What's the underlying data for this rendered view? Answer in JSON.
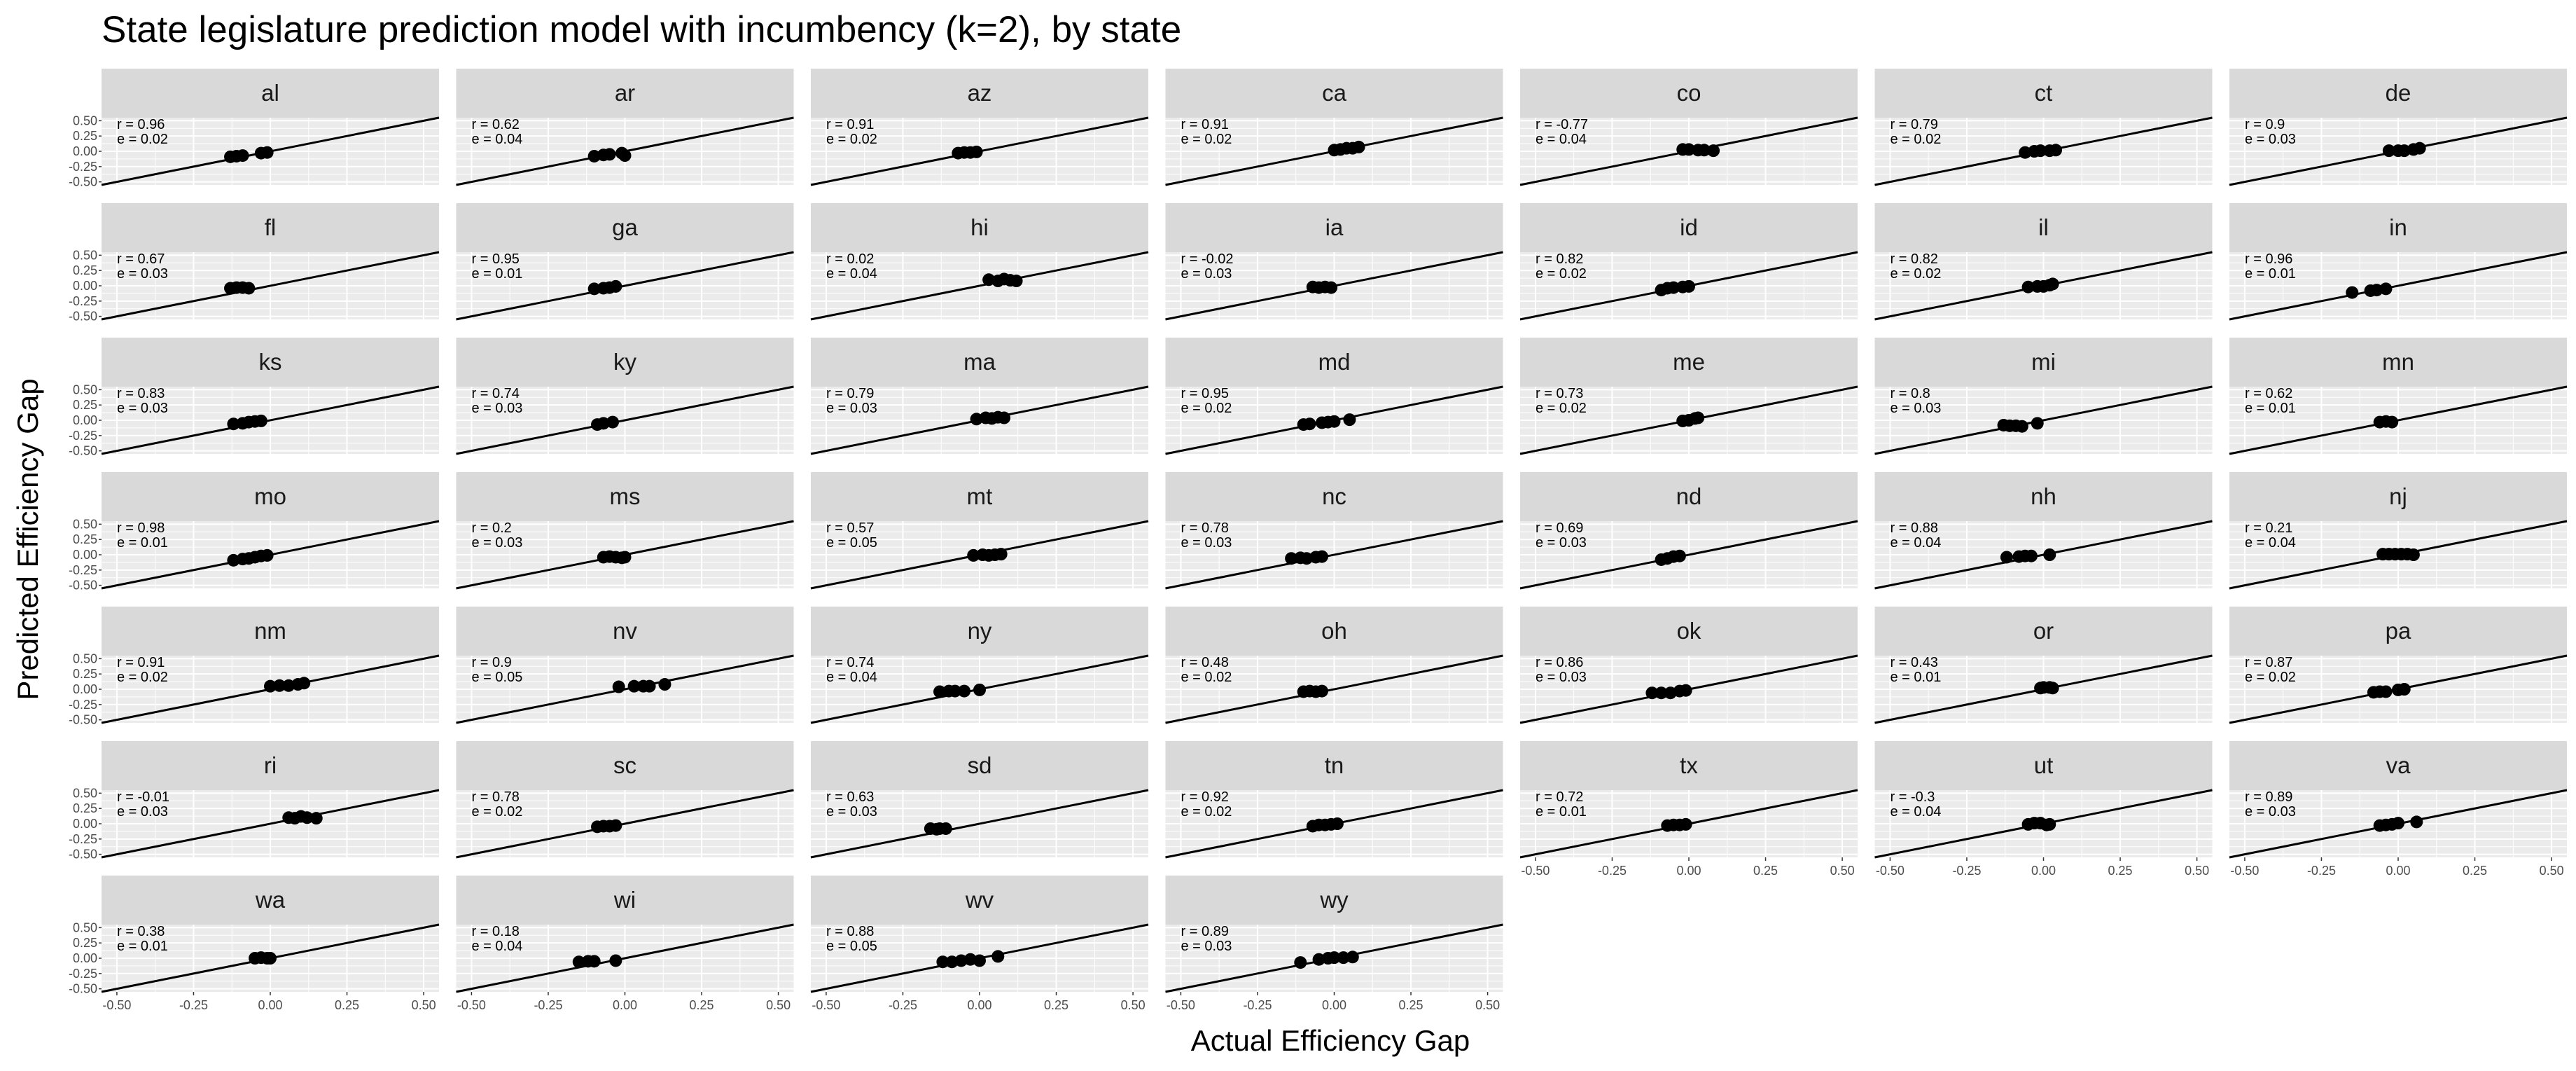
{
  "chart_data": {
    "type": "scatter",
    "title": "State legislature prediction model with incumbency (k=2), by state",
    "xlabel": "Actual Efficiency Gap",
    "ylabel": "Predicted Efficiency Gap",
    "xlim": [
      -0.55,
      0.55
    ],
    "ylim": [
      -0.55,
      0.55
    ],
    "x_ticks": [
      "-0.50",
      "-0.25",
      "0.00",
      "0.25",
      "0.50"
    ],
    "y_ticks": [
      "0.50",
      "0.25",
      "0.00",
      "-0.25",
      "-0.50"
    ],
    "reference_line": {
      "slope": 1,
      "intercept": 0
    },
    "grid": true,
    "ncol": 7,
    "colors": {
      "panel_bg": "#ebebeb",
      "strip_bg": "#d9d9d9",
      "grid": "#ffffff",
      "points": "#000000",
      "line": "#000000"
    },
    "panels": [
      {
        "state": "al",
        "r": "r = 0.96",
        "e": "e = 0.02",
        "points": [
          [
            -0.13,
            -0.09
          ],
          [
            -0.11,
            -0.08
          ],
          [
            -0.09,
            -0.07
          ],
          [
            -0.03,
            -0.03
          ],
          [
            -0.01,
            -0.02
          ]
        ]
      },
      {
        "state": "ar",
        "r": "r = 0.62",
        "e": "e = 0.04",
        "points": [
          [
            -0.1,
            -0.08
          ],
          [
            -0.07,
            -0.06
          ],
          [
            -0.05,
            -0.05
          ],
          [
            -0.01,
            -0.03
          ],
          [
            0.0,
            -0.07
          ]
        ]
      },
      {
        "state": "az",
        "r": "r = 0.91",
        "e": "e = 0.02",
        "points": [
          [
            -0.07,
            -0.03
          ],
          [
            -0.05,
            -0.02
          ],
          [
            -0.03,
            -0.02
          ],
          [
            -0.01,
            -0.01
          ]
        ]
      },
      {
        "state": "ca",
        "r": "r = 0.91",
        "e": "e = 0.02",
        "points": [
          [
            0.0,
            0.02
          ],
          [
            0.02,
            0.03
          ],
          [
            0.04,
            0.05
          ],
          [
            0.06,
            0.05
          ],
          [
            0.08,
            0.07
          ]
        ]
      },
      {
        "state": "co",
        "r": "r = -0.77",
        "e": "e = 0.04",
        "points": [
          [
            -0.02,
            0.03
          ],
          [
            0.0,
            0.03
          ],
          [
            0.03,
            0.02
          ],
          [
            0.05,
            0.02
          ],
          [
            0.08,
            0.01
          ]
        ]
      },
      {
        "state": "ct",
        "r": "r = 0.79",
        "e": "e = 0.02",
        "points": [
          [
            -0.06,
            -0.02
          ],
          [
            -0.03,
            0.0
          ],
          [
            -0.01,
            0.01
          ],
          [
            0.02,
            0.01
          ],
          [
            0.04,
            0.02
          ]
        ]
      },
      {
        "state": "de",
        "r": "r = 0.9",
        "e": "e = 0.03",
        "points": [
          [
            -0.03,
            0.01
          ],
          [
            0.0,
            0.01
          ],
          [
            0.02,
            0.01
          ],
          [
            0.05,
            0.03
          ],
          [
            0.07,
            0.05
          ]
        ]
      },
      {
        "state": "fl",
        "r": "r = 0.67",
        "e": "e = 0.03",
        "points": [
          [
            -0.13,
            -0.04
          ],
          [
            -0.11,
            -0.03
          ],
          [
            -0.09,
            -0.03
          ],
          [
            -0.07,
            -0.04
          ]
        ]
      },
      {
        "state": "ga",
        "r": "r = 0.95",
        "e": "e = 0.01",
        "points": [
          [
            -0.1,
            -0.05
          ],
          [
            -0.07,
            -0.04
          ],
          [
            -0.05,
            -0.03
          ],
          [
            -0.03,
            -0.01
          ]
        ]
      },
      {
        "state": "hi",
        "r": "r = 0.02",
        "e": "e = 0.04",
        "points": [
          [
            0.03,
            0.1
          ],
          [
            0.06,
            0.08
          ],
          [
            0.08,
            0.11
          ],
          [
            0.1,
            0.09
          ],
          [
            0.12,
            0.08
          ]
        ]
      },
      {
        "state": "ia",
        "r": "r = -0.02",
        "e": "e = 0.03",
        "points": [
          [
            -0.07,
            -0.02
          ],
          [
            -0.05,
            -0.03
          ],
          [
            -0.03,
            -0.02
          ],
          [
            -0.01,
            -0.03
          ]
        ]
      },
      {
        "state": "id",
        "r": "r = 0.82",
        "e": "e = 0.02",
        "points": [
          [
            -0.09,
            -0.07
          ],
          [
            -0.07,
            -0.04
          ],
          [
            -0.05,
            -0.03
          ],
          [
            -0.02,
            -0.02
          ],
          [
            0.0,
            -0.01
          ]
        ]
      },
      {
        "state": "il",
        "r": "r = 0.82",
        "e": "e = 0.02",
        "points": [
          [
            -0.05,
            -0.02
          ],
          [
            -0.02,
            -0.01
          ],
          [
            0.0,
            -0.01
          ],
          [
            0.02,
            0.01
          ],
          [
            0.03,
            0.03
          ]
        ]
      },
      {
        "state": "in",
        "r": "r = 0.96",
        "e": "e = 0.01",
        "points": [
          [
            -0.15,
            -0.11
          ],
          [
            -0.09,
            -0.08
          ],
          [
            -0.07,
            -0.07
          ],
          [
            -0.04,
            -0.05
          ]
        ]
      },
      {
        "state": "ks",
        "r": "r = 0.83",
        "e": "e = 0.03",
        "points": [
          [
            -0.12,
            -0.06
          ],
          [
            -0.09,
            -0.05
          ],
          [
            -0.07,
            -0.03
          ],
          [
            -0.05,
            -0.02
          ],
          [
            -0.03,
            -0.01
          ]
        ]
      },
      {
        "state": "ky",
        "r": "r = 0.74",
        "e": "e = 0.03",
        "points": [
          [
            -0.09,
            -0.07
          ],
          [
            -0.07,
            -0.05
          ],
          [
            -0.04,
            -0.03
          ]
        ]
      },
      {
        "state": "ma",
        "r": "r = 0.79",
        "e": "e = 0.03",
        "points": [
          [
            -0.01,
            0.02
          ],
          [
            0.02,
            0.04
          ],
          [
            0.04,
            0.03
          ],
          [
            0.06,
            0.05
          ],
          [
            0.08,
            0.04
          ]
        ]
      },
      {
        "state": "md",
        "r": "r = 0.95",
        "e": "e = 0.02",
        "points": [
          [
            -0.1,
            -0.07
          ],
          [
            -0.08,
            -0.06
          ],
          [
            -0.04,
            -0.04
          ],
          [
            -0.02,
            -0.03
          ],
          [
            0.0,
            -0.02
          ],
          [
            0.05,
            0.01
          ]
        ]
      },
      {
        "state": "me",
        "r": "r = 0.73",
        "e": "e = 0.02",
        "points": [
          [
            -0.02,
            -0.01
          ],
          [
            0.0,
            0.0
          ],
          [
            0.02,
            0.03
          ],
          [
            0.03,
            0.04
          ]
        ]
      },
      {
        "state": "mi",
        "r": "r = 0.8",
        "e": "e = 0.03",
        "points": [
          [
            -0.13,
            -0.08
          ],
          [
            -0.11,
            -0.09
          ],
          [
            -0.09,
            -0.09
          ],
          [
            -0.07,
            -0.1
          ],
          [
            -0.02,
            -0.05
          ]
        ]
      },
      {
        "state": "mn",
        "r": "r = 0.62",
        "e": "e = 0.01",
        "points": [
          [
            -0.06,
            -0.03
          ],
          [
            -0.04,
            -0.02
          ],
          [
            -0.02,
            -0.03
          ]
        ]
      },
      {
        "state": "mo",
        "r": "r = 0.98",
        "e": "e = 0.01",
        "points": [
          [
            -0.12,
            -0.09
          ],
          [
            -0.09,
            -0.07
          ],
          [
            -0.07,
            -0.06
          ],
          [
            -0.05,
            -0.04
          ],
          [
            -0.03,
            -0.02
          ],
          [
            -0.01,
            -0.01
          ]
        ]
      },
      {
        "state": "ms",
        "r": "r = 0.2",
        "e": "e = 0.03",
        "points": [
          [
            -0.07,
            -0.04
          ],
          [
            -0.05,
            -0.03
          ],
          [
            -0.03,
            -0.04
          ],
          [
            -0.01,
            -0.05
          ],
          [
            0.0,
            -0.04
          ]
        ]
      },
      {
        "state": "mt",
        "r": "r = 0.57",
        "e": "e = 0.05",
        "points": [
          [
            -0.02,
            -0.01
          ],
          [
            0.01,
            0.0
          ],
          [
            0.03,
            -0.01
          ],
          [
            0.05,
            0.0
          ],
          [
            0.07,
            0.01
          ]
        ]
      },
      {
        "state": "nc",
        "r": "r = 0.78",
        "e": "e = 0.03",
        "points": [
          [
            -0.14,
            -0.06
          ],
          [
            -0.11,
            -0.05
          ],
          [
            -0.09,
            -0.06
          ],
          [
            -0.06,
            -0.04
          ],
          [
            -0.04,
            -0.03
          ]
        ]
      },
      {
        "state": "nd",
        "r": "r = 0.69",
        "e": "e = 0.03",
        "points": [
          [
            -0.09,
            -0.08
          ],
          [
            -0.07,
            -0.06
          ],
          [
            -0.05,
            -0.03
          ],
          [
            -0.03,
            -0.02
          ]
        ]
      },
      {
        "state": "nh",
        "r": "r = 0.88",
        "e": "e = 0.04",
        "points": [
          [
            -0.12,
            -0.04
          ],
          [
            -0.08,
            -0.03
          ],
          [
            -0.06,
            -0.02
          ],
          [
            -0.04,
            -0.02
          ],
          [
            0.02,
            0.0
          ]
        ]
      },
      {
        "state": "nj",
        "r": "r = 0.21",
        "e": "e = 0.04",
        "points": [
          [
            -0.05,
            0.01
          ],
          [
            -0.03,
            0.01
          ],
          [
            -0.01,
            0.01
          ],
          [
            0.01,
            0.01
          ],
          [
            0.03,
            0.01
          ],
          [
            0.05,
            0.0
          ]
        ]
      },
      {
        "state": "nm",
        "r": "r = 0.91",
        "e": "e = 0.02",
        "points": [
          [
            0.0,
            0.05
          ],
          [
            0.03,
            0.06
          ],
          [
            0.06,
            0.06
          ],
          [
            0.09,
            0.08
          ],
          [
            0.11,
            0.1
          ]
        ]
      },
      {
        "state": "nv",
        "r": "r = 0.9",
        "e": "e = 0.05",
        "points": [
          [
            -0.02,
            0.04
          ],
          [
            0.03,
            0.05
          ],
          [
            0.06,
            0.05
          ],
          [
            0.08,
            0.05
          ],
          [
            0.13,
            0.08
          ]
        ]
      },
      {
        "state": "ny",
        "r": "r = 0.74",
        "e": "e = 0.04",
        "points": [
          [
            -0.13,
            -0.04
          ],
          [
            -0.1,
            -0.03
          ],
          [
            -0.08,
            -0.03
          ],
          [
            -0.05,
            -0.03
          ],
          [
            0.0,
            -0.01
          ]
        ]
      },
      {
        "state": "oh",
        "r": "r = 0.48",
        "e": "e = 0.02",
        "points": [
          [
            -0.1,
            -0.04
          ],
          [
            -0.08,
            -0.03
          ],
          [
            -0.06,
            -0.04
          ],
          [
            -0.04,
            -0.03
          ]
        ]
      },
      {
        "state": "ok",
        "r": "r = 0.86",
        "e": "e = 0.03",
        "points": [
          [
            -0.12,
            -0.06
          ],
          [
            -0.09,
            -0.06
          ],
          [
            -0.06,
            -0.06
          ],
          [
            -0.03,
            -0.03
          ],
          [
            -0.01,
            -0.02
          ]
        ]
      },
      {
        "state": "or",
        "r": "r = 0.43",
        "e": "e = 0.01",
        "points": [
          [
            -0.01,
            0.02
          ],
          [
            0.0,
            0.03
          ],
          [
            0.02,
            0.03
          ],
          [
            0.03,
            0.02
          ]
        ]
      },
      {
        "state": "pa",
        "r": "r = 0.87",
        "e": "e = 0.02",
        "points": [
          [
            -0.08,
            -0.05
          ],
          [
            -0.06,
            -0.04
          ],
          [
            -0.04,
            -0.04
          ],
          [
            0.0,
            -0.01
          ],
          [
            0.02,
            0.0
          ]
        ]
      },
      {
        "state": "ri",
        "r": "r = -0.01",
        "e": "e = 0.03",
        "points": [
          [
            0.06,
            0.1
          ],
          [
            0.08,
            0.09
          ],
          [
            0.1,
            0.12
          ],
          [
            0.12,
            0.1
          ],
          [
            0.15,
            0.09
          ]
        ]
      },
      {
        "state": "sc",
        "r": "r = 0.78",
        "e": "e = 0.02",
        "points": [
          [
            -0.09,
            -0.05
          ],
          [
            -0.07,
            -0.04
          ],
          [
            -0.05,
            -0.04
          ],
          [
            -0.03,
            -0.03
          ]
        ]
      },
      {
        "state": "sd",
        "r": "r = 0.63",
        "e": "e = 0.03",
        "points": [
          [
            -0.16,
            -0.08
          ],
          [
            -0.14,
            -0.09
          ],
          [
            -0.13,
            -0.08
          ],
          [
            -0.11,
            -0.08
          ]
        ]
      },
      {
        "state": "tn",
        "r": "r = 0.92",
        "e": "e = 0.02",
        "points": [
          [
            -0.07,
            -0.04
          ],
          [
            -0.05,
            -0.02
          ],
          [
            -0.03,
            -0.02
          ],
          [
            -0.01,
            -0.01
          ],
          [
            0.01,
            0.0
          ]
        ]
      },
      {
        "state": "tx",
        "r": "r = 0.72",
        "e": "e = 0.01",
        "points": [
          [
            -0.07,
            -0.03
          ],
          [
            -0.05,
            -0.02
          ],
          [
            -0.03,
            -0.02
          ],
          [
            -0.01,
            -0.01
          ]
        ]
      },
      {
        "state": "ut",
        "r": "r = -0.3",
        "e": "e = 0.04",
        "points": [
          [
            -0.05,
            -0.01
          ],
          [
            -0.03,
            0.01
          ],
          [
            -0.01,
            0.01
          ],
          [
            0.01,
            -0.02
          ],
          [
            0.02,
            -0.01
          ]
        ]
      },
      {
        "state": "va",
        "r": "r = 0.89",
        "e": "e = 0.03",
        "points": [
          [
            -0.06,
            -0.03
          ],
          [
            -0.04,
            -0.02
          ],
          [
            -0.02,
            -0.01
          ],
          [
            0.0,
            0.01
          ],
          [
            0.06,
            0.03
          ]
        ]
      },
      {
        "state": "wa",
        "r": "r = 0.38",
        "e": "e = 0.01",
        "points": [
          [
            -0.05,
            0.0
          ],
          [
            -0.03,
            0.01
          ],
          [
            -0.01,
            0.0
          ],
          [
            0.0,
            0.0
          ]
        ]
      },
      {
        "state": "wi",
        "r": "r = 0.18",
        "e": "e = 0.04",
        "points": [
          [
            -0.15,
            -0.06
          ],
          [
            -0.12,
            -0.05
          ],
          [
            -0.1,
            -0.05
          ],
          [
            -0.03,
            -0.04
          ]
        ]
      },
      {
        "state": "wv",
        "r": "r = 0.88",
        "e": "e = 0.05",
        "points": [
          [
            -0.12,
            -0.06
          ],
          [
            -0.09,
            -0.06
          ],
          [
            -0.06,
            -0.04
          ],
          [
            -0.03,
            -0.02
          ],
          [
            0.0,
            -0.04
          ],
          [
            0.06,
            0.03
          ]
        ]
      },
      {
        "state": "wy",
        "r": "r = 0.89",
        "e": "e = 0.03",
        "points": [
          [
            -0.11,
            -0.07
          ],
          [
            -0.05,
            -0.02
          ],
          [
            -0.02,
            0.0
          ],
          [
            0.0,
            0.01
          ],
          [
            0.03,
            0.01
          ],
          [
            0.06,
            0.02
          ]
        ]
      }
    ]
  }
}
